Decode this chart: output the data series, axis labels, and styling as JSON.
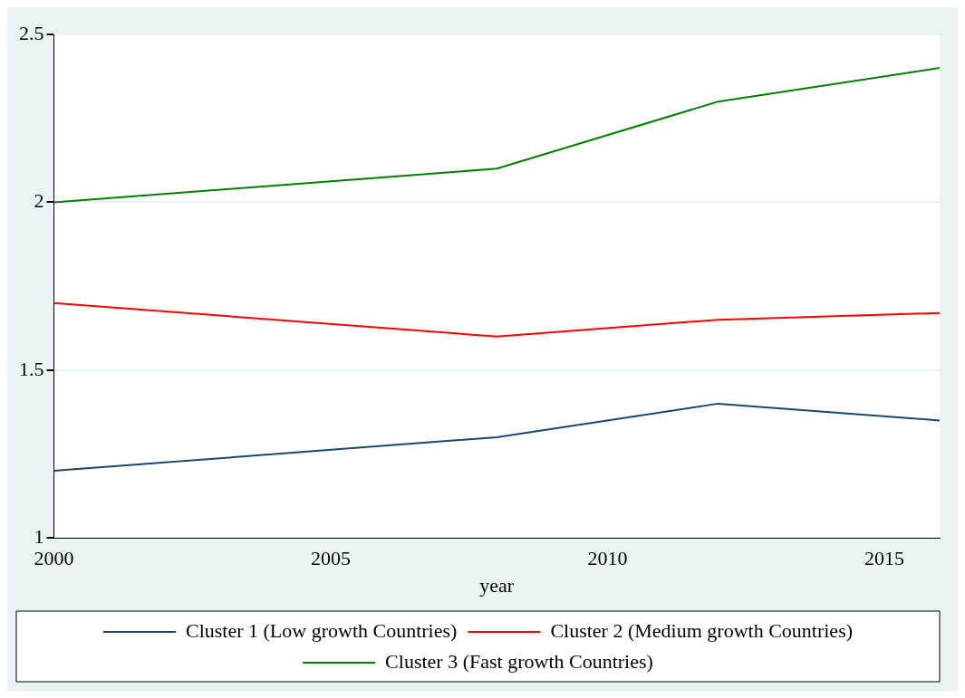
{
  "chart_data": {
    "type": "line",
    "xlabel": "year",
    "x": [
      2000,
      2008,
      2012,
      2016
    ],
    "xlim": [
      2000,
      2016
    ],
    "xticks": [
      2000,
      2005,
      2010,
      2015
    ],
    "ylim": [
      1,
      2.5
    ],
    "yticks": [
      1,
      1.5,
      2,
      2.5
    ],
    "grid": "y",
    "legend": "bottom",
    "marker": "none",
    "line_style": "solid",
    "series": [
      {
        "name": "Cluster 1 (Low growth Countries)",
        "color": "#1a476f",
        "values": [
          1.2,
          1.3,
          1.4,
          1.35
        ]
      },
      {
        "name": "Cluster 2 (Medium growth Countries)",
        "color": "#ff0000",
        "values": [
          1.7,
          1.6,
          1.65,
          1.67
        ]
      },
      {
        "name": "Cluster 3 (Fast growth Countries)",
        "color": "#008000",
        "values": [
          2.0,
          2.1,
          2.3,
          2.4
        ]
      }
    ]
  }
}
